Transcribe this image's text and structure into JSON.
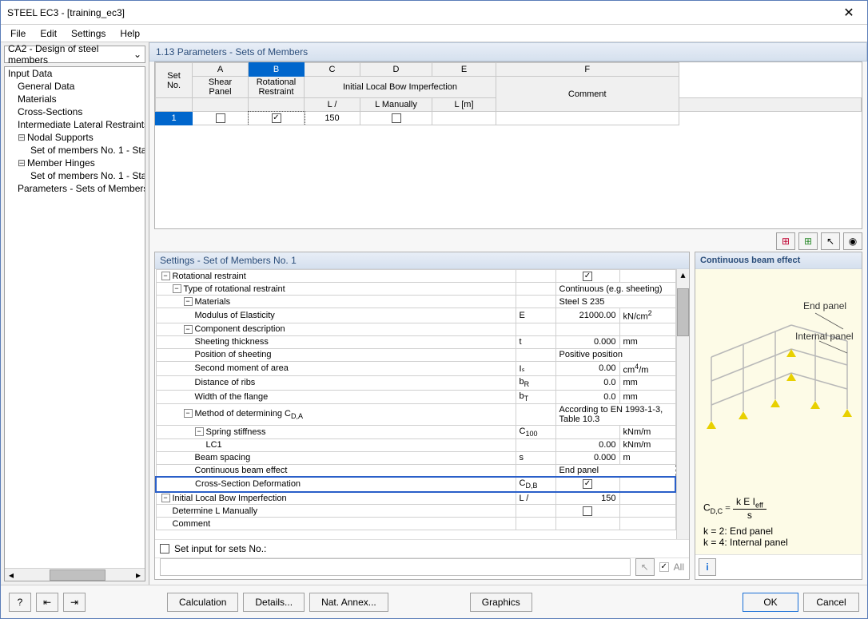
{
  "window": {
    "title": "STEEL EC3 - [training_ec3]"
  },
  "menu": {
    "file": "File",
    "edit": "Edit",
    "settings": "Settings",
    "help": "Help"
  },
  "selector": {
    "value": "CA2 - Design of steel members"
  },
  "tree": {
    "input_data": "Input Data",
    "general_data": "General Data",
    "materials": "Materials",
    "cross_sections": "Cross-Sections",
    "intermediate": "Intermediate Lateral Restraints",
    "nodal_supports": "Nodal Supports",
    "set1a": "Set of members No. 1 - Sta",
    "member_hinges": "Member Hinges",
    "set1b": "Set of members No. 1 - Sta",
    "params": "Parameters - Sets of Members"
  },
  "grid": {
    "title": "1.13 Parameters - Sets of Members",
    "cols": {
      "A": "A",
      "B": "B",
      "C": "C",
      "D": "D",
      "E": "E",
      "F": "F",
      "set_no": "Set\nNo.",
      "shear": "Shear\nPanel",
      "rotational": "Rotational\nRestraint",
      "imperfection": "Initial Local Bow Imperfection",
      "l_div": "L /",
      "l_manual": "L Manually",
      "l_m": "L [m]",
      "comment": "Comment"
    },
    "row": {
      "no": "1",
      "shear": false,
      "rotational": true,
      "l_div": "150",
      "l_manual": false,
      "l_m": "",
      "comment": ""
    }
  },
  "toolbar_icons": {
    "exc_red": "▦",
    "exc_green": "▦",
    "pick": "↖",
    "eye": "◉"
  },
  "settings": {
    "title": "Settings - Set of Members No. 1",
    "rows": [
      {
        "label": "Rotational restraint",
        "sym": "",
        "val": "checkbox_on",
        "unit": "",
        "indent": 0,
        "toggle": "-"
      },
      {
        "label": "Type of rotational restraint",
        "sym": "",
        "val": "Continuous (e.g. sheeting)",
        "unit": "",
        "indent": 1,
        "toggle": "-",
        "fullval": true
      },
      {
        "label": "Materials",
        "sym": "",
        "val": "Steel S 235",
        "unit": "",
        "indent": 2,
        "toggle": "-",
        "fullval": true
      },
      {
        "label": "Modulus of Elasticity",
        "sym": "E",
        "val": "21000.00",
        "unit": "kN/cm²",
        "indent": 3
      },
      {
        "label": "Component description",
        "sym": "",
        "val": "",
        "unit": "",
        "indent": 2,
        "toggle": "-"
      },
      {
        "label": "Sheeting thickness",
        "sym": "t",
        "val": "0.000",
        "unit": "mm",
        "indent": 3
      },
      {
        "label": "Position of sheeting",
        "sym": "",
        "val": "Positive position",
        "unit": "",
        "indent": 3,
        "fullval": true
      },
      {
        "label": "Second moment of area",
        "sym": "Iₛ",
        "val": "0.00",
        "unit": "cm⁴/m",
        "indent": 3
      },
      {
        "label": "Distance of ribs",
        "sym": "bR",
        "val": "0.0",
        "unit": "mm",
        "indent": 3,
        "subscript": "R"
      },
      {
        "label": "Width of the flange",
        "sym": "bT",
        "val": "0.0",
        "unit": "mm",
        "indent": 3,
        "subscript": "T"
      },
      {
        "label": "Method of determining CD,A",
        "sym": "",
        "val": "According to EN 1993-1-3, Table 10.3",
        "unit": "",
        "indent": 2,
        "toggle": "-",
        "fullval": true,
        "sub_cda": true
      },
      {
        "label": "Spring stiffness",
        "sym": "C100",
        "val": "",
        "unit": "kNm/m",
        "indent": 3,
        "toggle": "-",
        "subscript": "100"
      },
      {
        "label": "LC1",
        "sym": "",
        "val": "0.00",
        "unit": "kNm/m",
        "indent": 4
      },
      {
        "label": "Beam spacing",
        "sym": "s",
        "val": "0.000",
        "unit": "m",
        "indent": 3
      },
      {
        "label": "Continuous beam effect",
        "sym": "",
        "val": "End panel",
        "unit": "",
        "indent": 3,
        "fullval": true,
        "dashed": true
      },
      {
        "label": "Cross-Section Deformation",
        "sym": "CD,B",
        "val": "checkbox_on",
        "unit": "",
        "indent": 3,
        "subscript": "D,B",
        "highlight": true
      },
      {
        "label": "Initial Local Bow Imperfection",
        "sym": "L /",
        "val": "150",
        "unit": "",
        "indent": 0,
        "toggle": "-"
      },
      {
        "label": "Determine L Manually",
        "sym": "",
        "val": "checkbox_off",
        "unit": "",
        "indent": 1
      },
      {
        "label": "Comment",
        "sym": "",
        "val": "",
        "unit": "",
        "indent": 1
      }
    ],
    "set_input_label": "Set input for sets No.:",
    "all_label": "All"
  },
  "preview": {
    "title": "Continuous beam effect",
    "end_panel": "End panel",
    "internal_panel": "Internal panel",
    "formula_lhs": "C",
    "formula_sub_lhs": "D,C",
    "formula_rhs_num": "k E I",
    "formula_rhs_num_sub": "eff",
    "formula_rhs_den": "s",
    "k2": "k = 2: End panel",
    "k4": "k = 4: Internal panel"
  },
  "buttons": {
    "calculation": "Calculation",
    "details": "Details...",
    "nat_annex": "Nat. Annex...",
    "graphics": "Graphics",
    "ok": "OK",
    "cancel": "Cancel"
  }
}
